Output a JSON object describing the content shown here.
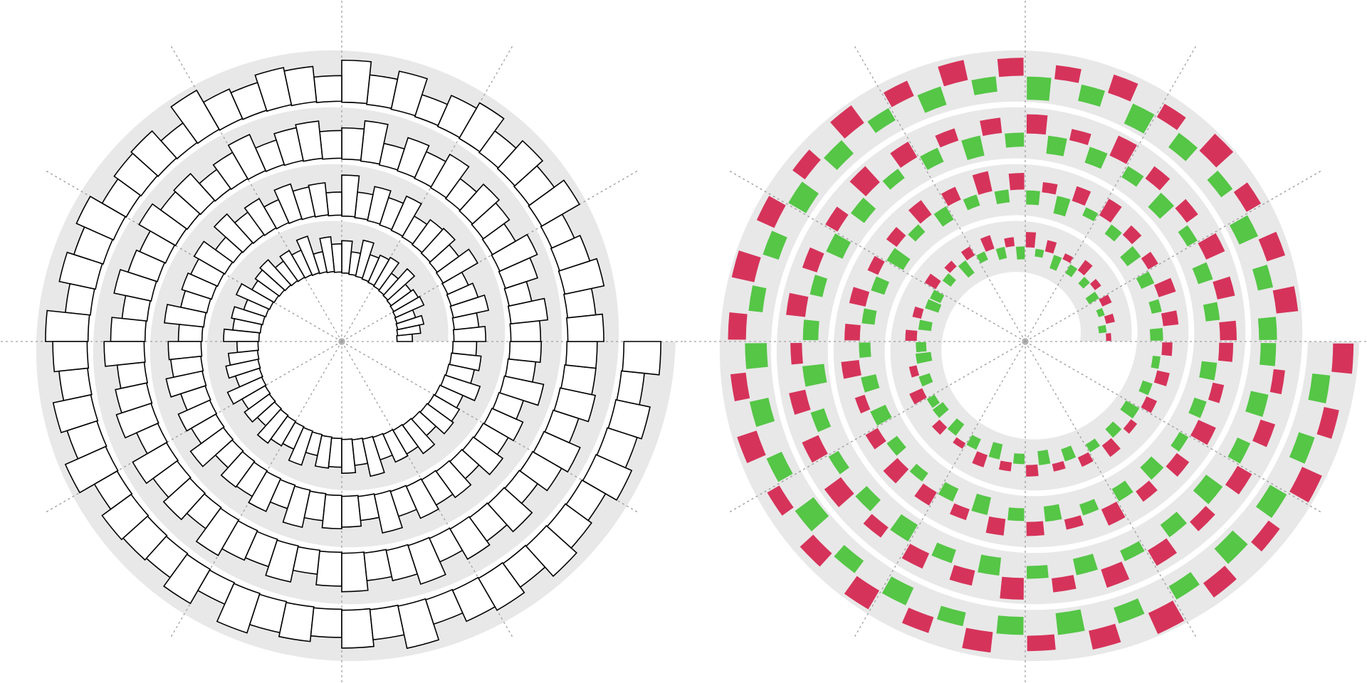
{
  "chart_data": [
    {
      "type": "spiral_bar",
      "ylim": [
        0,
        100
      ],
      "color": "#ffffff",
      "edgecolor": "#000000",
      "band_color": "#e8e8e8",
      "values": [
        30,
        45,
        52,
        38,
        60,
        55,
        48,
        70,
        42,
        65,
        58,
        50,
        72,
        44,
        63,
        55,
        68,
        40,
        75,
        52,
        60,
        47,
        66,
        58,
        50,
        71,
        45,
        62,
        54,
        69,
        41,
        57,
        64,
        49,
        73,
        52,
        60,
        45,
        67,
        55,
        48,
        70,
        42,
        61,
        56,
        66,
        50,
        74,
        46,
        59,
        53,
        68,
        43,
        63,
        57,
        49,
        72,
        51,
        58,
        46,
        62,
        48,
        70,
        55,
        44,
        78,
        52,
        65,
        60,
        47,
        73,
        56,
        68,
        50,
        80,
        45,
        63,
        58,
        71,
        49,
        66,
        54,
        75,
        43,
        69,
        57,
        61,
        52,
        77,
        46,
        64,
        59,
        72,
        50,
        67,
        55,
        79,
        44,
        62,
        58,
        70,
        48,
        74,
        53,
        65,
        60,
        47,
        76,
        51,
        68,
        57,
        63,
        45,
        71,
        56,
        66,
        50,
        78,
        54,
        61,
        58,
        72,
        45,
        66,
        80,
        52,
        63,
        70,
        48,
        75,
        57,
        68,
        43,
        79,
        61,
        54,
        73,
        65,
        50,
        77,
        59,
        46,
        70,
        64,
        82,
        55,
        60,
        74,
        49,
        67,
        78,
        53,
        62,
        71,
        45,
        76,
        58,
        69,
        51,
        80,
        63,
        56,
        72,
        47,
        66,
        75,
        54,
        60,
        79,
        50,
        68,
        57,
        73,
        44,
        65,
        77,
        52,
        70,
        61,
        59,
        70,
        55,
        78,
        62,
        48,
        85,
        60,
        73,
        52,
        80,
        66,
        45,
        76,
        58,
        82,
        50,
        69,
        74,
        57,
        63,
        88,
        47,
        71,
        65,
        54,
        79,
        60,
        72,
        49,
        83,
        67,
        56,
        75,
        61,
        86,
        51,
        70,
        64,
        58,
        77,
        46,
        81,
        62,
        68,
        55,
        74,
        59,
        84,
        50,
        66,
        72,
        57,
        79,
        63,
        53,
        76,
        61,
        68,
        45,
        72
      ]
    },
    {
      "type": "spiral_diverging_bar",
      "ylim": [
        -100,
        100
      ],
      "pos_color": "#d6335a",
      "neg_color": "#55c646",
      "band_color": "#e8e8e8",
      "values": [
        20,
        -30,
        35,
        -25,
        40,
        -45,
        30,
        -35,
        50,
        -40,
        25,
        -55,
        45,
        -30,
        60,
        -50,
        35,
        -45,
        55,
        -35,
        40,
        -60,
        30,
        -40,
        50,
        -45,
        -55,
        35,
        -50,
        45,
        -40,
        -60,
        30,
        -45,
        55,
        -35,
        -50,
        40,
        -55,
        25,
        -45,
        50,
        -60,
        35,
        -40,
        45,
        -55,
        30,
        -50,
        40,
        -35,
        55,
        -45,
        30,
        -60,
        45,
        -40,
        50,
        -30,
        40,
        -50,
        60,
        -40,
        70,
        -55,
        45,
        -65,
        50,
        -45,
        75,
        -35,
        60,
        -70,
        40,
        -55,
        65,
        -50,
        80,
        -45,
        55,
        -60,
        70,
        -40,
        50,
        -75,
        45,
        -55,
        65,
        -50,
        60,
        -45,
        70,
        -60,
        40,
        -65,
        55,
        -50,
        75,
        -40,
        60,
        -55,
        45,
        -70,
        65,
        -50,
        55,
        -60,
        40,
        -45,
        70,
        -55,
        50,
        -65,
        60,
        -40,
        75,
        -50,
        45,
        -60,
        55,
        65,
        -55,
        70,
        -60,
        80,
        -45,
        55,
        -75,
        60,
        -50,
        85,
        -65,
        45,
        -70,
        75,
        -55,
        60,
        -80,
        50,
        -60,
        70,
        -45,
        85,
        -65,
        55,
        -70,
        60,
        -50,
        75,
        -60,
        45,
        -85,
        65,
        -55,
        70,
        -45,
        80,
        -60,
        50,
        -75,
        65,
        -55,
        60,
        -70,
        85,
        -50,
        55,
        -65,
        75,
        -45,
        70,
        -60,
        50,
        -80,
        65,
        -55,
        60,
        -70,
        45,
        -60,
        -70,
        85,
        -60,
        75,
        -80,
        65,
        -55,
        90,
        -70,
        60,
        -85,
        75,
        -65,
        55,
        -90,
        70,
        -60,
        80,
        -75,
        65,
        -55,
        85,
        -70,
        60,
        -80,
        75,
        -65,
        90,
        -55,
        70,
        -85,
        60,
        -75,
        80,
        -65,
        55,
        -90,
        70,
        -60,
        85,
        -75,
        65,
        -55,
        80,
        -70,
        60,
        -85,
        75,
        -65,
        90,
        -60,
        70,
        -80,
        55,
        -75,
        85,
        -65,
        60,
        -70,
        80
      ]
    }
  ]
}
